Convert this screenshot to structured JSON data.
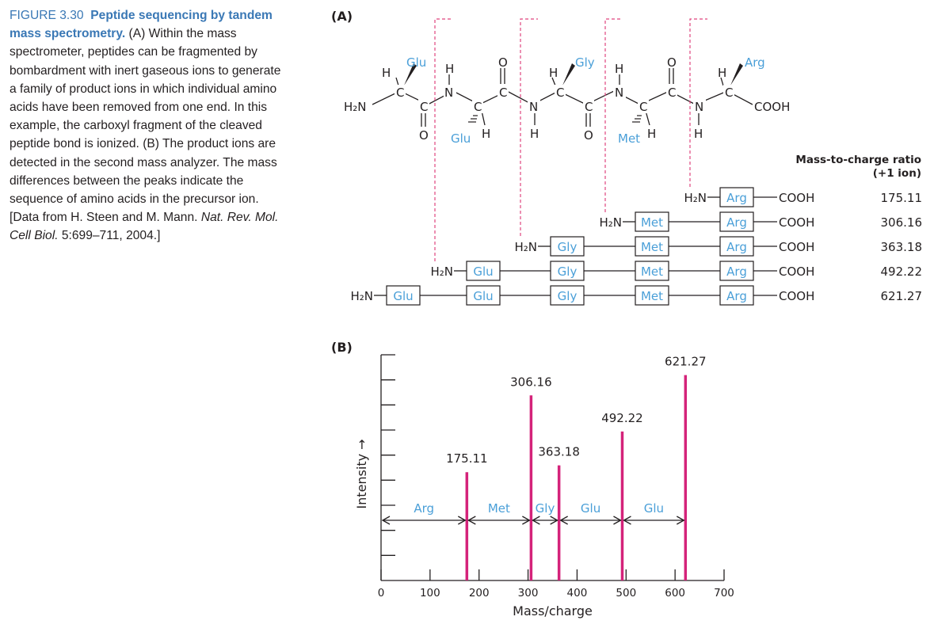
{
  "caption": {
    "figure_label": "FIGURE 3.30",
    "title": "Peptide sequencing by tandem mass spectrometry.",
    "body": "(A) Within the mass spectrometer, peptides can be fragmented by bombardment with inert gaseous ions to generate a family of product ions in which individual amino acids have been removed from one end. In this example, the carboxyl fragment of the cleaved peptide bond is ionized. (B) The product ions are detected in the second mass analyzer. The mass differences between the peaks indicate the sequence of amino acids in the precursor ion. [Data from H. Steen and M. Mann. ",
    "journal": "Nat. Rev. Mol. Cell Biol.",
    "ref_tail": " 5:699–711, 2004.]"
  },
  "panel_a": {
    "label": "(A)",
    "residues": [
      "Glu",
      "Glu",
      "Gly",
      "Met",
      "Arg"
    ],
    "n_terminus": "H₂N",
    "c_terminus": "COOH",
    "atoms": {
      "H": "H",
      "C": "C",
      "N": "N",
      "O": "O"
    },
    "ratio_header_1": "Mass-to-charge ratio",
    "ratio_header_2": "(+1 ion)",
    "fragments": [
      {
        "residues": [
          "Arg"
        ],
        "cterm": "COOH",
        "mz": "175.11"
      },
      {
        "residues": [
          "Met",
          "Arg"
        ],
        "cterm": "COOH",
        "mz": "306.16"
      },
      {
        "residues": [
          "Gly",
          "Met",
          "Arg"
        ],
        "cterm": "COOH",
        "mz": "363.18"
      },
      {
        "residues": [
          "Glu",
          "Gly",
          "Met",
          "Arg"
        ],
        "cterm": "COOH",
        "mz": "492.22"
      },
      {
        "residues": [
          "Glu",
          "Glu",
          "Gly",
          "Met",
          "Arg"
        ],
        "cterm": "COOH",
        "mz": "621.27"
      }
    ]
  },
  "panel_b": {
    "label": "(B)"
  },
  "chart_data": {
    "type": "bar",
    "xlabel": "Mass/charge",
    "ylabel": "Intensity →",
    "xlim": [
      0,
      700
    ],
    "xticks": [
      0,
      100,
      200,
      300,
      400,
      500,
      600,
      700
    ],
    "peaks": [
      {
        "x": 175.11,
        "label": "175.11",
        "intensity": 0.48
      },
      {
        "x": 306.16,
        "label": "306.16",
        "intensity": 0.82
      },
      {
        "x": 363.18,
        "label": "363.18",
        "intensity": 0.51
      },
      {
        "x": 492.22,
        "label": "492.22",
        "intensity": 0.66
      },
      {
        "x": 621.27,
        "label": "621.27",
        "intensity": 0.91
      }
    ],
    "mass_differences": [
      {
        "label": "Arg",
        "from": 0,
        "to": 175.11
      },
      {
        "label": "Met",
        "from": 175.11,
        "to": 306.16
      },
      {
        "label": "Gly",
        "from": 306.16,
        "to": 363.18
      },
      {
        "label": "Glu",
        "from": 363.18,
        "to": 492.22
      },
      {
        "label": "Glu",
        "from": 492.22,
        "to": 621.27
      }
    ],
    "colors": {
      "peaks": "#d4237a",
      "residue_labels": "#4a9fd8"
    }
  }
}
